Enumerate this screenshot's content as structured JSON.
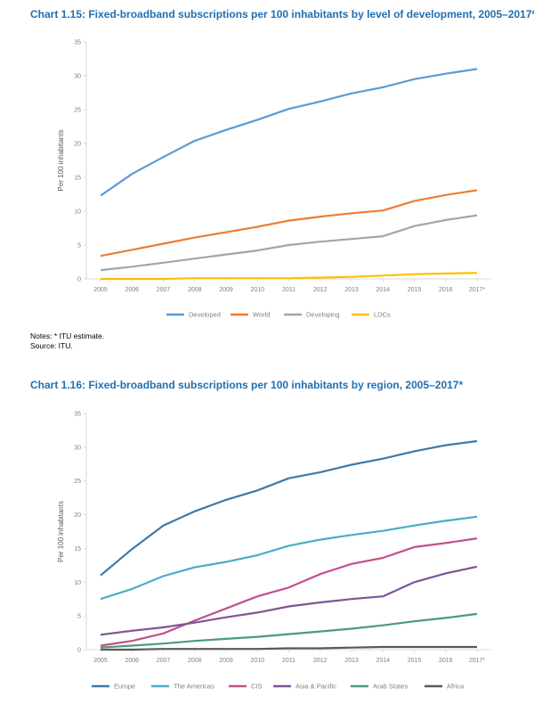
{
  "notes": {
    "line1": "Notes: * ITU estimate.",
    "line2": "Source: ITU."
  },
  "chart_data": [
    {
      "type": "line",
      "title": "Chart 1.15: Fixed-broadband subscriptions per 100 inhabitants by level of development, 2005–2017*",
      "ylabel": "Per 100 inhabitants",
      "xlabel": "",
      "categories": [
        "2005",
        "2006",
        "2007",
        "2008",
        "2009",
        "2010",
        "2011",
        "2012",
        "2013",
        "2014",
        "2015",
        "2016",
        "2017*"
      ],
      "ylim": [
        0,
        35
      ],
      "yticks": [
        0,
        5,
        10,
        15,
        20,
        25,
        30,
        35
      ],
      "grid": false,
      "legend": "bottom",
      "series": [
        {
          "name": "Developed",
          "color": "#5b9bd5",
          "values": [
            12.3,
            15.5,
            18.0,
            20.4,
            22.0,
            23.5,
            25.1,
            26.2,
            27.4,
            28.3,
            29.5,
            30.3,
            31.0
          ]
        },
        {
          "name": "World",
          "color": "#ed7d31",
          "values": [
            3.4,
            4.3,
            5.2,
            6.1,
            6.9,
            7.7,
            8.6,
            9.2,
            9.7,
            10.1,
            11.5,
            12.4,
            13.1
          ]
        },
        {
          "name": "Developing",
          "color": "#a5a5a5",
          "values": [
            1.3,
            1.8,
            2.4,
            3.0,
            3.6,
            4.2,
            5.0,
            5.5,
            5.9,
            6.3,
            7.8,
            8.7,
            9.4
          ]
        },
        {
          "name": "LDCs",
          "color": "#ffc000",
          "values": [
            0.0,
            0.0,
            0.0,
            0.1,
            0.1,
            0.1,
            0.1,
            0.2,
            0.3,
            0.5,
            0.7,
            0.8,
            0.9
          ]
        }
      ]
    },
    {
      "type": "line",
      "title": "Chart 1.16: Fixed-broadband subscriptions per 100 inhabitants by region, 2005–2017*",
      "ylabel": "Per 100 inhabitants",
      "xlabel": "",
      "categories": [
        "2005",
        "2006",
        "2007",
        "2008",
        "2009",
        "2010",
        "2011",
        "2012",
        "2013",
        "2014",
        "2015",
        "2016",
        "2017*"
      ],
      "ylim": [
        0,
        35
      ],
      "yticks": [
        0,
        5,
        10,
        15,
        20,
        25,
        30,
        35
      ],
      "grid": false,
      "legend": "bottom",
      "series": [
        {
          "name": "Europe",
          "color": "#3e79a9",
          "values": [
            11.0,
            14.9,
            18.4,
            20.5,
            22.2,
            23.6,
            25.4,
            26.3,
            27.4,
            28.3,
            29.4,
            30.3,
            30.9
          ]
        },
        {
          "name": "The Americas",
          "color": "#4bacc6",
          "values": [
            7.5,
            9.0,
            10.9,
            12.2,
            13.0,
            14.0,
            15.4,
            16.3,
            17.0,
            17.6,
            18.4,
            19.1,
            19.7
          ]
        },
        {
          "name": "CIS",
          "color": "#c0508e",
          "values": [
            0.6,
            1.3,
            2.4,
            4.3,
            6.1,
            7.9,
            9.2,
            11.2,
            12.7,
            13.6,
            15.2,
            15.8,
            16.5
          ]
        },
        {
          "name": "Asia & Pacific",
          "color": "#7c5698",
          "values": [
            2.2,
            2.8,
            3.3,
            4.0,
            4.8,
            5.5,
            6.4,
            7.0,
            7.5,
            7.9,
            10.0,
            11.3,
            12.3
          ]
        },
        {
          "name": "Arab States",
          "color": "#4a9b78",
          "values": [
            0.3,
            0.6,
            0.9,
            1.3,
            1.6,
            1.9,
            2.3,
            2.7,
            3.1,
            3.6,
            4.2,
            4.7,
            5.3
          ]
        },
        {
          "name": "Africa",
          "color": "#595959",
          "values": [
            0.0,
            0.0,
            0.1,
            0.1,
            0.1,
            0.1,
            0.2,
            0.2,
            0.3,
            0.4,
            0.4,
            0.4,
            0.4
          ]
        }
      ]
    }
  ]
}
